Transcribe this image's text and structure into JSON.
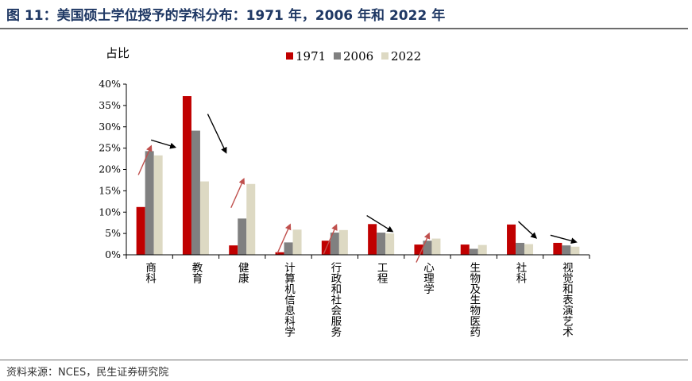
{
  "header": {
    "title": "图 11：美国硕士学位授予的学科分布：1971 年，2006 年和 2022 年"
  },
  "footer": {
    "source": "资料来源：NCES，民生证券研究院"
  },
  "chart_data": {
    "type": "bar",
    "ylabel": "占比",
    "ylim": [
      0,
      0.4
    ],
    "yticks": [
      "0%",
      "5%",
      "10%",
      "15%",
      "20%",
      "25%",
      "30%",
      "35%",
      "40%"
    ],
    "categories": [
      "商科",
      "教育",
      "健康",
      "计算机信息科学",
      "行政和社会服务",
      "工程",
      "心理学",
      "生物及生物医药",
      "社科",
      "视觉和表演艺术"
    ],
    "series": [
      {
        "name": "1971",
        "color": "#c00000",
        "values": [
          0.112,
          0.372,
          0.022,
          0.006,
          0.033,
          0.072,
          0.024,
          0.024,
          0.071,
          0.028
        ]
      },
      {
        "name": "2006",
        "color": "#808080",
        "values": [
          0.243,
          0.291,
          0.085,
          0.029,
          0.052,
          0.052,
          0.033,
          0.014,
          0.028,
          0.022
        ]
      },
      {
        "name": "2022",
        "color": "#ddd9c3",
        "values": [
          0.233,
          0.172,
          0.166,
          0.059,
          0.058,
          0.05,
          0.038,
          0.023,
          0.025,
          0.019
        ]
      }
    ],
    "legend_position": "top",
    "grid": false,
    "trend_arrows": [
      {
        "category": "商科",
        "direction": "up",
        "color": "#c0504d"
      },
      {
        "category": "商科",
        "direction": "right-down",
        "color": "#000000"
      },
      {
        "category": "教育",
        "direction": "down",
        "color": "#000000"
      },
      {
        "category": "健康",
        "direction": "up",
        "color": "#c0504d"
      },
      {
        "category": "计算机信息科学",
        "direction": "up",
        "color": "#c0504d"
      },
      {
        "category": "行政和社会服务",
        "direction": "up",
        "color": "#c0504d"
      },
      {
        "category": "工程",
        "direction": "down",
        "color": "#000000"
      },
      {
        "category": "心理学",
        "direction": "up",
        "color": "#c0504d"
      },
      {
        "category": "社科",
        "direction": "down",
        "color": "#000000"
      },
      {
        "category": "视觉和表演艺术",
        "direction": "down",
        "color": "#000000"
      }
    ]
  }
}
